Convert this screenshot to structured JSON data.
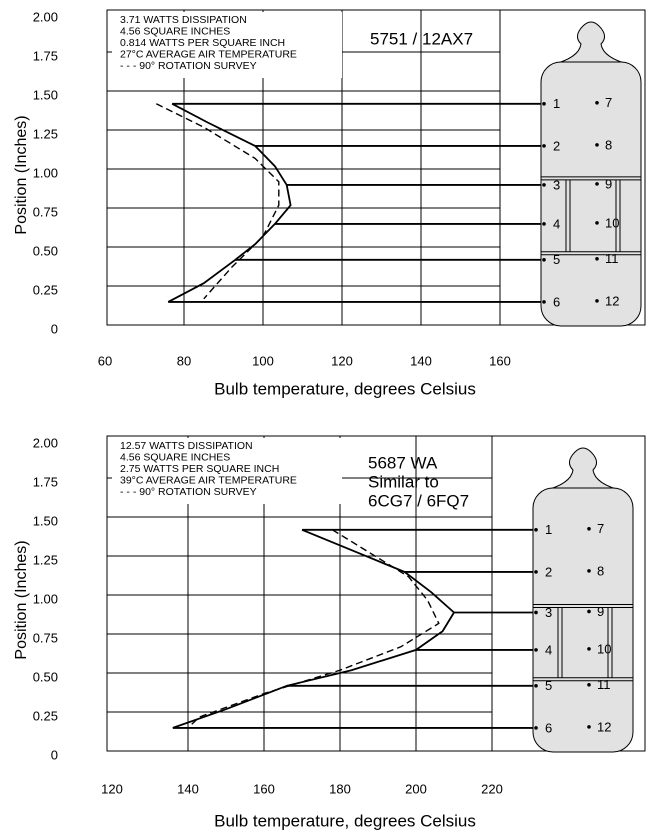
{
  "chart_data": [
    {
      "type": "line",
      "title_lines": [
        "5751 / 12AX7"
      ],
      "annotations": [
        "3.71 WATTS DISSIPATION",
        "4.56 SQUARE INCHES",
        "0.814 WATTS PER SQUARE INCH",
        "27°C AVERAGE AIR TEMPERATURE",
        "- - - 90° ROTATION SURVEY"
      ],
      "x_label": "Bulb temperature, degrees Celsius",
      "y_label": "Position (Inches)",
      "xlim": [
        60,
        160
      ],
      "xticks": [
        60,
        80,
        100,
        120,
        140,
        160
      ],
      "ylim": [
        0,
        2
      ],
      "yticks": [
        {
          "value": 2,
          "label": "2.00"
        },
        {
          "value": 1.75,
          "label": "1.75"
        },
        {
          "value": 1.5,
          "label": "1.50"
        },
        {
          "value": 1.25,
          "label": "1.25"
        },
        {
          "value": 1,
          "label": "1.00"
        },
        {
          "value": 0.75,
          "label": "0.75"
        },
        {
          "value": 0.5,
          "label": "0.50"
        },
        {
          "value": 0.25,
          "label": "0.25"
        },
        0
      ],
      "grid": true,
      "series": [
        {
          "color": "#000000",
          "dash": false,
          "x": [
            77,
            86,
            98,
            103,
            106,
            107,
            103,
            98,
            93,
            85,
            76
          ],
          "y": [
            1.45,
            1.33,
            1.18,
            1.05,
            0.93,
            0.8,
            0.68,
            0.55,
            0.45,
            0.3,
            0.18
          ]
        },
        {
          "color": "#000000",
          "dash": true,
          "x": [
            73,
            85,
            98,
            104,
            104,
            100,
            92,
            85
          ],
          "y": [
            1.45,
            1.3,
            1.1,
            0.95,
            0.8,
            0.6,
            0.4,
            0.2
          ]
        }
      ],
      "pin_labels": [
        "1",
        "2",
        "3",
        "4",
        "5",
        "6",
        "7",
        "8",
        "9",
        "10",
        "11",
        "12"
      ]
    },
    {
      "type": "line",
      "title_lines": [
        "5687 WA",
        "Similar to",
        "6CG7 / 6FQ7"
      ],
      "annotations": [
        "12.57 WATTS DISSIPATION",
        "4.56 SQUARE INCHES",
        "2.75 WATTS PER SQUARE INCH",
        "39°C AVERAGE AIR TEMPERATURE",
        "- - - 90° ROTATION SURVEY"
      ],
      "x_label": "Bulb temperature, degrees Celsius",
      "y_label": "Position (Inches)",
      "xlim": [
        120,
        220
      ],
      "xticks": [
        120,
        140,
        160,
        180,
        200,
        220
      ],
      "ylim": [
        0,
        2
      ],
      "yticks": [
        {
          "value": 2,
          "label": "2.00"
        },
        {
          "value": 1.75,
          "label": "1.75"
        },
        {
          "value": 1.5,
          "label": "1.50"
        },
        {
          "value": 1.25,
          "label": "1.25"
        },
        {
          "value": 1,
          "label": "1.00"
        },
        {
          "value": 0.75,
          "label": "0.75"
        },
        {
          "value": 0.5,
          "label": "0.50"
        },
        {
          "value": 0.25,
          "label": "0.25"
        },
        0
      ],
      "grid": true,
      "series": [
        {
          "color": "#000000",
          "dash": false,
          "x": [
            170,
            185,
            197,
            204,
            210,
            207,
            200,
            183,
            166,
            150,
            136
          ],
          "y": [
            1.45,
            1.3,
            1.18,
            1.05,
            0.92,
            0.8,
            0.68,
            0.55,
            0.45,
            0.3,
            0.18
          ]
        },
        {
          "color": "#000000",
          "dash": true,
          "x": [
            178,
            188,
            198,
            203,
            206,
            196,
            180,
            160,
            143,
            140
          ],
          "y": [
            1.45,
            1.3,
            1.15,
            1.0,
            0.85,
            0.7,
            0.55,
            0.4,
            0.25,
            0.18
          ]
        }
      ],
      "pin_labels": [
        "1",
        "2",
        "3",
        "4",
        "5",
        "6",
        "7",
        "8",
        "9",
        "10",
        "11",
        "12"
      ]
    }
  ]
}
